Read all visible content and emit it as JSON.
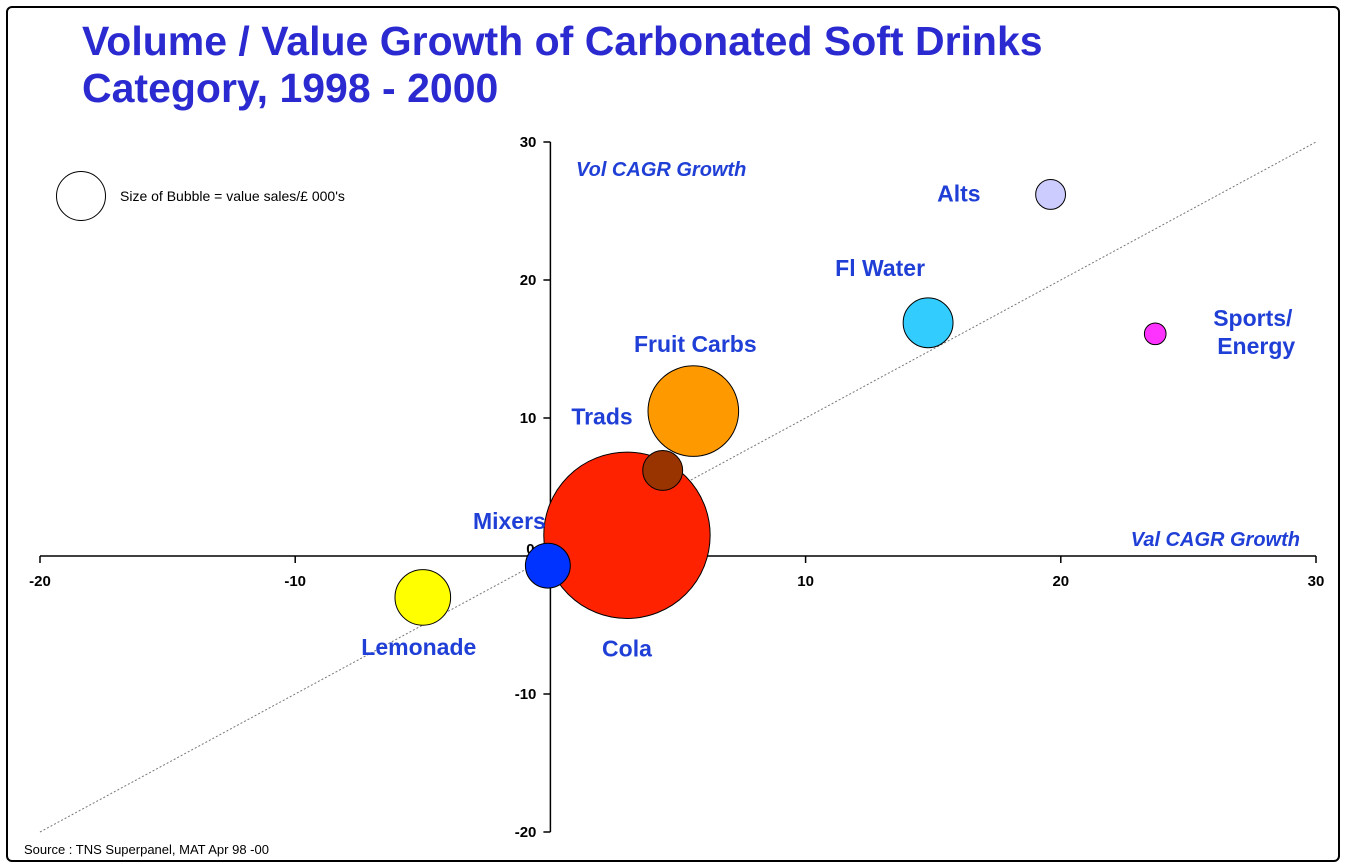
{
  "title": {
    "line1": "Volume / Value Growth of Carbonated Soft Drinks",
    "line2": "Category, 1998 - 2000"
  },
  "legend": {
    "text": "Size of Bubble = value sales/£ 000's"
  },
  "source": "Source : TNS Superpanel, MAT Apr 98 -00",
  "colors": {
    "title": "#2a2ad0",
    "label": "#1f3fd6",
    "axis": "#000000",
    "trendline": "#777777"
  },
  "chart_data": {
    "type": "scatter",
    "subtype": "bubble",
    "title": "Volume / Value Growth of Carbonated Soft Drinks Category, 1998 - 2000",
    "xlabel": "Val CAGR Growth",
    "ylabel": "Vol CAGR Growth",
    "xlim": [
      -20,
      30
    ],
    "ylim": [
      -20,
      30
    ],
    "xticks": [
      -20,
      -10,
      0,
      10,
      20,
      30
    ],
    "yticks": [
      -20,
      -10,
      0,
      10,
      20,
      30
    ],
    "origin_label": "0",
    "grid": false,
    "trendline": {
      "from": [
        -20,
        -20
      ],
      "to": [
        30,
        30
      ],
      "style": "dotted"
    },
    "series": [
      {
        "name": "Cola",
        "x": 3,
        "y": 1.5,
        "size": 5900,
        "color": "#ff2200"
      },
      {
        "name": "Fruit Carbs",
        "x": 5.6,
        "y": 10.5,
        "size": 1750,
        "color": "#ff9900"
      },
      {
        "name": "Trads",
        "x": 4.4,
        "y": 6.2,
        "size": 340,
        "color": "#993300"
      },
      {
        "name": "Mixers",
        "x": -0.1,
        "y": -0.7,
        "size": 430,
        "color": "#0033ff"
      },
      {
        "name": "Lemonade",
        "x": -5,
        "y": -3,
        "size": 660,
        "color": "#ffff00"
      },
      {
        "name": "Fl Water",
        "x": 14.8,
        "y": 16.9,
        "size": 530,
        "color": "#33ccff"
      },
      {
        "name": "Alts",
        "x": 19.6,
        "y": 26.2,
        "size": 190,
        "color": "#ccccff"
      },
      {
        "name": "Sports/ Energy",
        "x": 23.7,
        "y": 16.1,
        "size": 100,
        "color": "#ff33ff"
      }
    ]
  }
}
